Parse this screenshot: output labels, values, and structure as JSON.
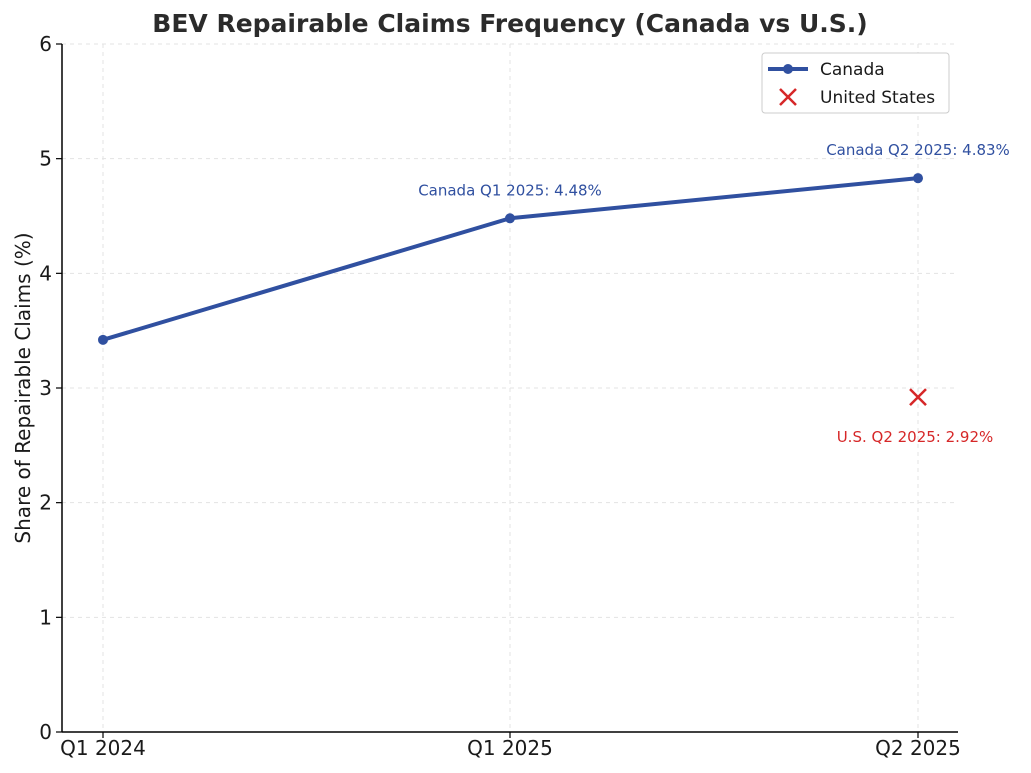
{
  "chart_data": {
    "type": "line",
    "title": "BEV Repairable Claims Frequency (Canada vs U.S.)",
    "xlabel": "",
    "ylabel": "Share of Repairable Claims (%)",
    "categories": [
      "Q1 2024",
      "Q1 2025",
      "Q2 2025"
    ],
    "ylim": [
      0,
      6
    ],
    "yticks": [
      0,
      1,
      2,
      3,
      4,
      5,
      6
    ],
    "grid": true,
    "legend_position": "top-right",
    "series": [
      {
        "name": "Canada",
        "kind": "line-marker",
        "color": "#3050a0",
        "points": [
          {
            "category": "Q1 2024",
            "value": 3.42
          },
          {
            "category": "Q1 2025",
            "value": 4.48
          },
          {
            "category": "Q2 2025",
            "value": 4.83
          }
        ]
      },
      {
        "name": "United States",
        "kind": "x-marker",
        "color": "#d62728",
        "points": [
          {
            "category": "Q2 2025",
            "value": 2.92
          }
        ]
      }
    ],
    "annotations": [
      {
        "text": "Canada Q1 2025: 4.48%",
        "category": "Q1 2025",
        "value": 4.48,
        "color": "#3050a0"
      },
      {
        "text": "Canada Q2 2025: 4.83%",
        "category": "Q2 2025",
        "value": 4.83,
        "color": "#3050a0"
      },
      {
        "text": "U.S. Q2 2025: 2.92%",
        "category": "Q2 2025",
        "value": 2.92,
        "color": "#d62728"
      }
    ]
  }
}
